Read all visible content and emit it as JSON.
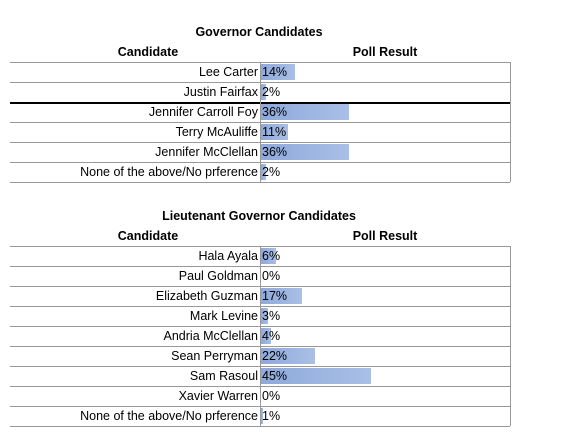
{
  "tables": [
    {
      "title": "Governor Candidates",
      "headers": [
        "Candidate",
        "Poll Result"
      ],
      "rows": [
        {
          "candidate": "Lee Carter",
          "result": {
            "value": 14,
            "label": "14%"
          }
        },
        {
          "candidate": "Justin Fairfax",
          "result": {
            "value": 2,
            "label": "2%"
          }
        },
        {
          "candidate": "Jennifer Carroll Foy",
          "result": {
            "value": 36,
            "label": "36%"
          }
        },
        {
          "candidate": "Terry McAuliffe",
          "result": {
            "value": 11,
            "label": "11%"
          }
        },
        {
          "candidate": "Jennifer McClellan",
          "result": {
            "value": 36,
            "label": "36%"
          }
        },
        {
          "candidate": "None of the above/No prference",
          "result": {
            "value": 2,
            "label": "2%"
          }
        }
      ]
    },
    {
      "title": "Lieutenant Governor Candidates",
      "headers": [
        "Candidate",
        "Poll Result"
      ],
      "rows": [
        {
          "candidate": "Hala Ayala",
          "result": {
            "value": 6,
            "label": "6%"
          }
        },
        {
          "candidate": "Paul Goldman",
          "result": {
            "value": 0,
            "label": "0%"
          }
        },
        {
          "candidate": "Elizabeth Guzman",
          "result": {
            "value": 17,
            "label": "17%"
          }
        },
        {
          "candidate": "Mark Levine",
          "result": {
            "value": 3,
            "label": "3%"
          }
        },
        {
          "candidate": "Andria McClellan",
          "result": {
            "value": 4,
            "label": "4%"
          }
        },
        {
          "candidate": "Sean Perryman",
          "result": {
            "value": 22,
            "label": "22%"
          }
        },
        {
          "candidate": "Sam Rasoul",
          "result": {
            "value": 45,
            "label": "45%"
          }
        },
        {
          "candidate": "Xavier Warren",
          "result": {
            "value": 0,
            "label": "0%"
          }
        },
        {
          "candidate": "None of the above/No prference",
          "result": {
            "value": 1,
            "label": "1%"
          }
        }
      ]
    }
  ]
}
